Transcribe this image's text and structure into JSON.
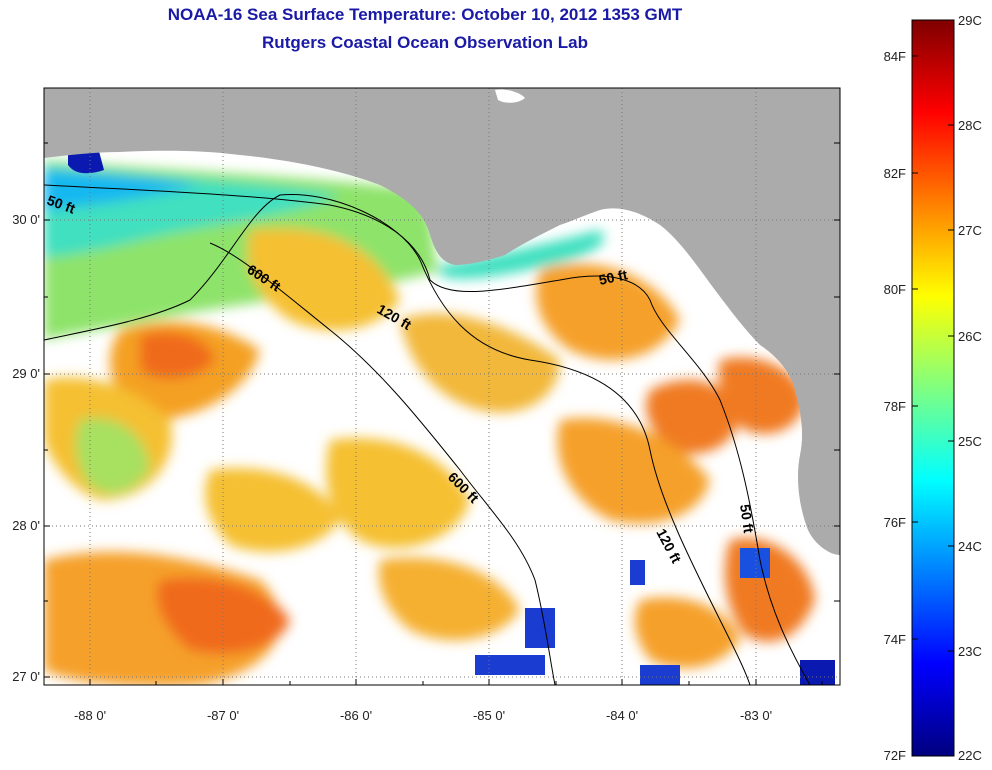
{
  "header": {
    "title": "NOAA-16 Sea Surface Temperature:  October 10, 2012 1353 GMT",
    "subtitle": "Rutgers Coastal Ocean Observation Lab"
  },
  "map": {
    "longitude_ticks": [
      "-88 0'",
      "-87 0'",
      "-86 0'",
      "-85 0'",
      "-84 0'",
      "-83 0'"
    ],
    "latitude_ticks": [
      "30 0'",
      "29 0'",
      "28 0'",
      "27 0'"
    ],
    "contour_labels": [
      "50 ft",
      "600 ft",
      "120 ft",
      "50 ft",
      "600 ft",
      "120 ft",
      "50 ft"
    ],
    "colors": {
      "land": "#ababab",
      "cloud": "#ffffff",
      "frame": "#000000"
    }
  },
  "colorbar": {
    "fahrenheit_labels": [
      "84F",
      "82F",
      "80F",
      "78F",
      "76F",
      "74F",
      "72F"
    ],
    "celsius_labels": [
      "29C",
      "28C",
      "27C",
      "26C",
      "25C",
      "24C",
      "23C",
      "22C"
    ],
    "gradient": [
      "#00007f",
      "#0000ff",
      "#0080ff",
      "#00ffff",
      "#80ff80",
      "#ffff00",
      "#ff8000",
      "#ff0000",
      "#7f0000"
    ]
  }
}
